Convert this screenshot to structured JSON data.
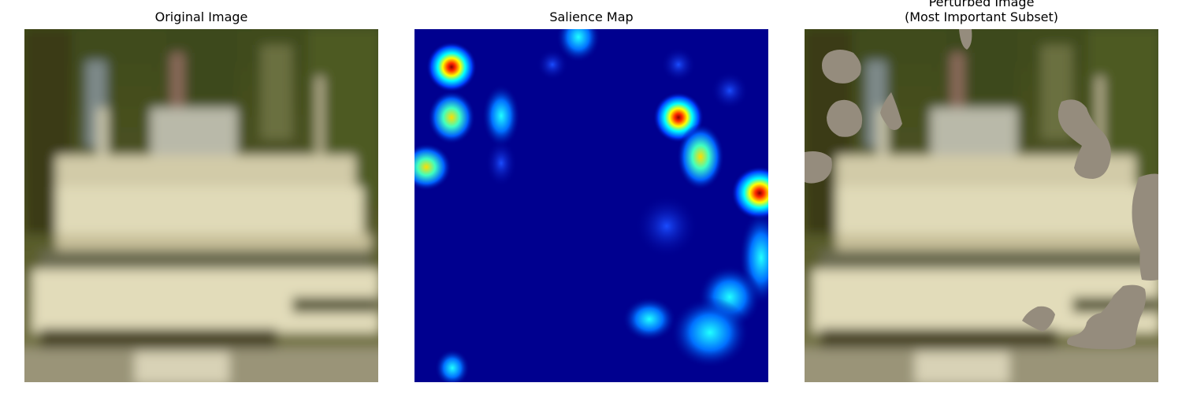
{
  "figure": {
    "panels": [
      {
        "title": "Original Image"
      },
      {
        "title": "Salience Map"
      },
      {
        "title_line1": "Perturbed Image",
        "title_line2": "(Most Important Subset)"
      }
    ]
  },
  "colors": {
    "background": "#ffffff",
    "salience_low": "#00008f",
    "salience_high": "#ff0000",
    "mask_fill": "#958c7d"
  }
}
